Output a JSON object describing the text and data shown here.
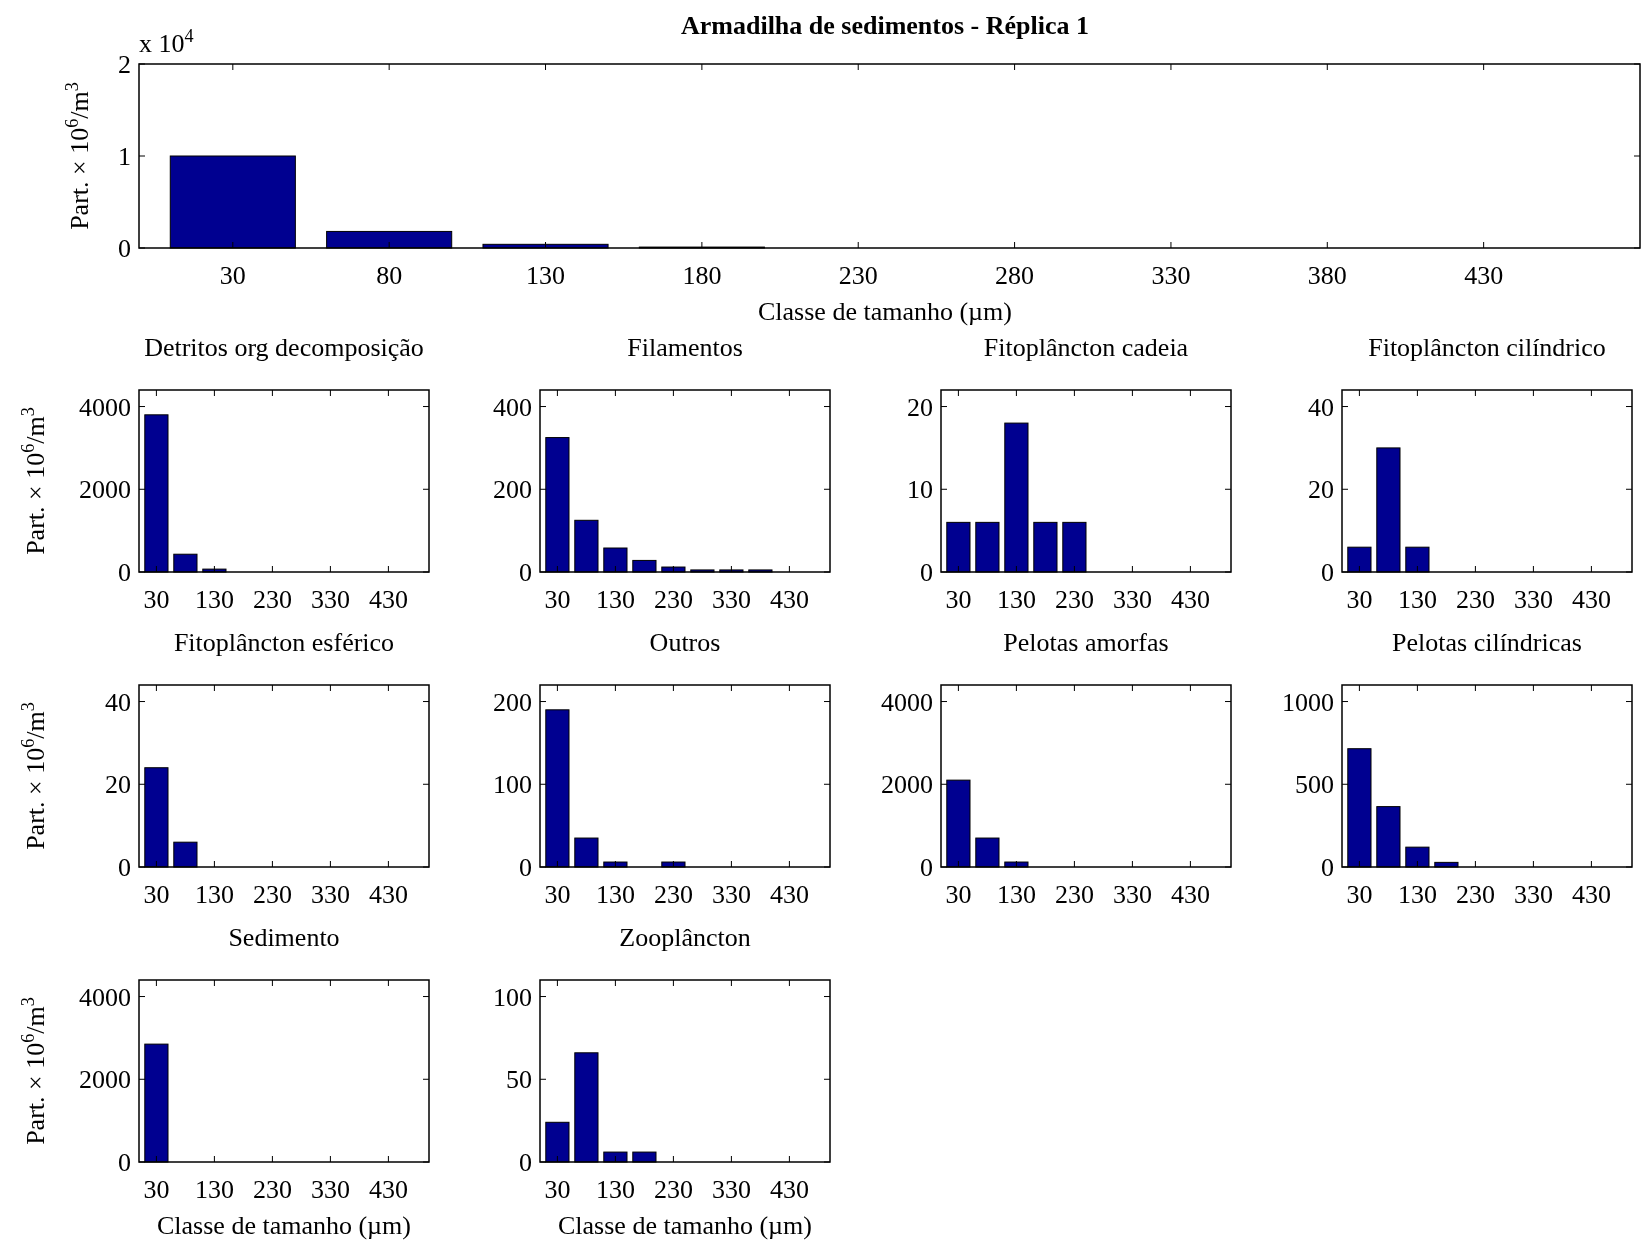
{
  "chart_data": [
    {
      "type": "bar",
      "title": "Armadilha de sedimentos - Réplica 1",
      "xlabel": "Classe de tamanho (µm)",
      "ylabel": "Part. × 10$^{6}$/m$^{3}$",
      "annotations": [
        "x 10$^{4}$"
      ],
      "x": [
        30,
        80,
        130,
        180,
        230,
        280,
        330,
        380,
        430
      ],
      "values": [
        1.0,
        0.18,
        0.04,
        0.01,
        0,
        0,
        0,
        0,
        0
      ],
      "color": "#000090",
      "xlim": [
        0,
        480
      ],
      "xticks": [
        30,
        80,
        130,
        180,
        230,
        280,
        330,
        380,
        430
      ],
      "ylim": [
        0,
        2
      ],
      "yticks": [
        0,
        1,
        2
      ]
    },
    {
      "type": "bar",
      "title": "Detritos org decomposição",
      "ylabel": "Part. × 10$^{6}$/m$^{3}$",
      "x": [
        30,
        80,
        130,
        180,
        230,
        280,
        330,
        380,
        430
      ],
      "values": [
        3800,
        430,
        70,
        null,
        0,
        0,
        0,
        0,
        0
      ],
      "color": "#000090",
      "xlim": [
        0,
        500
      ],
      "xticks": [
        30,
        130,
        230,
        330,
        430
      ],
      "ylim": [
        0,
        4400
      ],
      "yticks": [
        0,
        2000,
        4000
      ]
    },
    {
      "type": "bar",
      "title": "Filamentos",
      "x": [
        30,
        80,
        130,
        180,
        230,
        280,
        330,
        380,
        430
      ],
      "values": [
        325,
        125,
        58,
        28,
        12,
        5,
        5,
        5,
        0
      ],
      "color": "#000090",
      "xlim": [
        0,
        500
      ],
      "xticks": [
        30,
        130,
        230,
        330,
        430
      ],
      "ylim": [
        0,
        440
      ],
      "yticks": [
        0,
        200,
        400
      ]
    },
    {
      "type": "bar",
      "title": "Fitoplâncton cadeia",
      "x": [
        30,
        80,
        130,
        180,
        230,
        280,
        330,
        380,
        430
      ],
      "values": [
        6,
        6,
        18,
        6,
        6,
        0,
        0,
        0,
        0
      ],
      "color": "#000090",
      "xlim": [
        0,
        500
      ],
      "xticks": [
        30,
        130,
        230,
        330,
        430
      ],
      "ylim": [
        0,
        22
      ],
      "yticks": [
        0,
        10,
        20
      ]
    },
    {
      "type": "bar",
      "title": "Fitoplâncton cilíndrico",
      "x": [
        30,
        80,
        130,
        180,
        230,
        280,
        330,
        380,
        430
      ],
      "values": [
        6,
        30,
        6,
        0,
        0,
        0,
        0,
        0,
        0
      ],
      "color": "#000090",
      "xlim": [
        0,
        500
      ],
      "xticks": [
        30,
        130,
        230,
        330,
        430
      ],
      "ylim": [
        0,
        44
      ],
      "yticks": [
        0,
        20,
        40
      ]
    },
    {
      "type": "bar",
      "title": "Fitoplâncton esférico",
      "ylabel": "Part. × 10$^{6}$/m$^{3}$",
      "x": [
        30,
        80,
        130,
        180,
        230,
        280,
        330,
        380,
        430
      ],
      "values": [
        24,
        6,
        0,
        0,
        0,
        0,
        0,
        0,
        0
      ],
      "color": "#000090",
      "xlim": [
        0,
        500
      ],
      "xticks": [
        30,
        130,
        230,
        330,
        430
      ],
      "ylim": [
        0,
        44
      ],
      "yticks": [
        0,
        20,
        40
      ]
    },
    {
      "type": "bar",
      "title": "Outros",
      "x": [
        30,
        80,
        130,
        180,
        230,
        280,
        330,
        380,
        430
      ],
      "values": [
        190,
        35,
        6,
        0,
        6,
        0,
        0,
        0,
        0
      ],
      "color": "#000090",
      "xlim": [
        0,
        500
      ],
      "xticks": [
        30,
        130,
        230,
        330,
        430
      ],
      "ylim": [
        0,
        220
      ],
      "yticks": [
        0,
        100,
        200
      ]
    },
    {
      "type": "bar",
      "title": "Pelotas amorfas",
      "x": [
        30,
        80,
        130,
        180,
        230,
        280,
        330,
        380,
        430
      ],
      "values": [
        2100,
        700,
        120,
        null,
        0,
        0,
        0,
        0,
        0
      ],
      "color": "#000090",
      "xlim": [
        0,
        500
      ],
      "xticks": [
        30,
        130,
        230,
        330,
        430
      ],
      "ylim": [
        0,
        4400
      ],
      "yticks": [
        0,
        2000,
        4000
      ]
    },
    {
      "type": "bar",
      "title": "Pelotas cilíndricas",
      "x": [
        30,
        80,
        130,
        180,
        230,
        280,
        330,
        380,
        430
      ],
      "values": [
        715,
        365,
        120,
        28,
        0,
        0,
        0,
        0,
        0
      ],
      "color": "#000090",
      "xlim": [
        0,
        500
      ],
      "xticks": [
        30,
        130,
        230,
        330,
        430
      ],
      "ylim": [
        0,
        1100
      ],
      "yticks": [
        0,
        500,
        1000
      ]
    },
    {
      "type": "bar",
      "title": "Sedimento",
      "xlabel": "Classe de tamanho (µm)",
      "ylabel": "Part. × 10$^{6}$/m$^{3}$",
      "x": [
        30,
        80,
        130,
        180,
        230,
        280,
        330,
        380,
        430
      ],
      "values": [
        2850,
        0,
        0,
        0,
        0,
        0,
        0,
        0,
        0
      ],
      "color": "#000090",
      "xlim": [
        0,
        500
      ],
      "xticks": [
        30,
        130,
        230,
        330,
        430
      ],
      "ylim": [
        0,
        4400
      ],
      "yticks": [
        0,
        2000,
        4000
      ]
    },
    {
      "type": "bar",
      "title": "Zooplâncton",
      "xlabel": "Classe de tamanho (µm)",
      "x": [
        30,
        80,
        130,
        180,
        230,
        280,
        330,
        380,
        430
      ],
      "values": [
        24,
        66,
        6,
        6,
        0,
        0,
        0,
        0,
        0
      ],
      "color": "#000090",
      "xlim": [
        0,
        500
      ],
      "xticks": [
        30,
        130,
        230,
        330,
        430
      ],
      "ylim": [
        0,
        110
      ],
      "yticks": [
        0,
        50,
        100
      ]
    }
  ]
}
